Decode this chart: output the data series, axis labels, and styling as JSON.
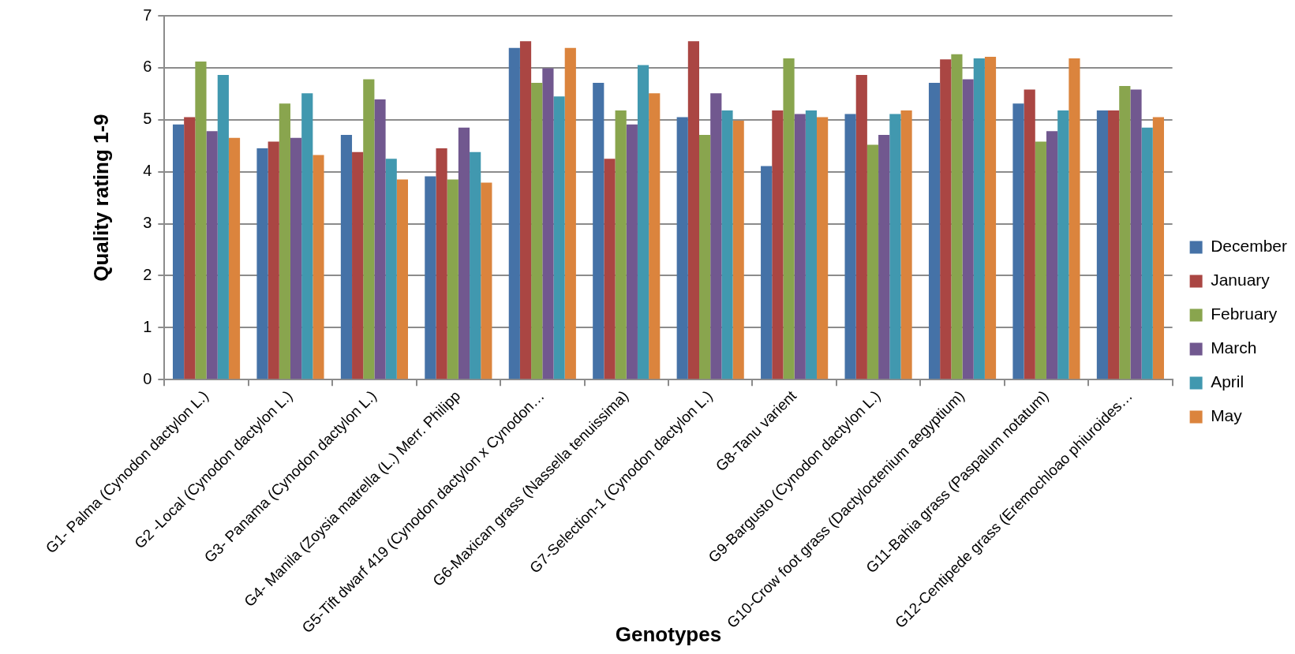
{
  "chart_data": {
    "type": "bar",
    "xlabel": "Genotypes",
    "ylabel": "Quality rating 1-9",
    "categories": [
      "G1- Palma (Cynodon dactylon L.)",
      "G2 -Local (Cynodon dactylon L.)",
      "G3- Panama (Cynodon dactylon L.)",
      "G4- Manila (Zoysia matrella (L.) Merr. Philipp",
      "G5-Tift dwarf 419 (Cynodon dactylon x Cynodon…",
      "G6-Maxican grass (Nassella tenuissima)",
      "G7-Selection-1 (Cynodon dactylon L.)",
      "G8-Tanu varient",
      "G9-Bargusto (Cynodon dactylon L.)",
      "G10-Crow foot grass (Dactyloctenium aegyptium)",
      "G11-Bahia grass (Paspalum notatum)",
      "G12-Centipede grass (Eremochloao phiuroides…"
    ],
    "series": [
      {
        "name": "December",
        "color": "#4572a7",
        "values": [
          4.91,
          4.45,
          4.71,
          3.91,
          6.38,
          5.71,
          5.05,
          4.11,
          5.11,
          5.71,
          5.31,
          5.18
        ]
      },
      {
        "name": "January",
        "color": "#aa4643",
        "values": [
          5.05,
          4.58,
          4.38,
          4.45,
          6.51,
          4.25,
          6.51,
          5.18,
          5.86,
          6.16,
          5.58,
          5.18
        ]
      },
      {
        "name": "February",
        "color": "#89a54e",
        "values": [
          6.12,
          5.31,
          5.78,
          3.85,
          5.71,
          5.18,
          4.71,
          6.18,
          4.52,
          6.26,
          4.58,
          5.65
        ]
      },
      {
        "name": "March",
        "color": "#71588f",
        "values": [
          4.78,
          4.65,
          5.39,
          4.85,
          5.99,
          4.91,
          5.51,
          5.11,
          4.71,
          5.78,
          4.78,
          5.58
        ]
      },
      {
        "name": "April",
        "color": "#4198af",
        "values": [
          5.86,
          5.51,
          4.25,
          4.38,
          5.45,
          6.05,
          5.18,
          5.18,
          5.11,
          6.18,
          5.18,
          4.85
        ]
      },
      {
        "name": "May",
        "color": "#db843d",
        "values": [
          4.65,
          4.32,
          3.85,
          3.79,
          6.38,
          5.51,
          4.98,
          5.05,
          5.18,
          6.21,
          6.18,
          5.05
        ]
      }
    ],
    "ylim": [
      0,
      7
    ],
    "yticks": [
      0,
      1,
      2,
      3,
      4,
      5,
      6,
      7
    ],
    "grid": "y",
    "legend": "right"
  }
}
